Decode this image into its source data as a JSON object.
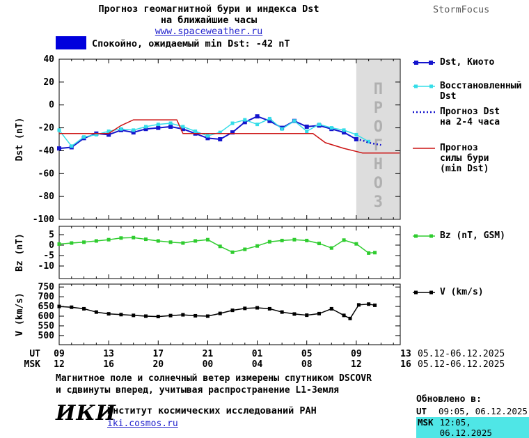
{
  "header": {
    "title_line1": "Прогноз геомагнитной бури и индекса Dst",
    "title_line2": "на ближайшие часы",
    "site_link": "www.spaceweather.ru",
    "brand": "StormFocus"
  },
  "banner": {
    "swatch_color": "#0000dd",
    "text": "Спокойно, ожидаемый min Dst: -42 nT"
  },
  "chart_data": [
    {
      "type": "line",
      "ylabel": "Dst (nT)",
      "ylim": [
        -100,
        40
      ],
      "yticks": [
        40,
        20,
        0,
        -20,
        -40,
        -60,
        -80,
        -100
      ],
      "xlim_hours": [
        0,
        28
      ],
      "forecast_band_start_hour": 24,
      "forecast_band_label": "ПРОГНОЗ",
      "series": [
        {
          "id": "dst-kyoto",
          "name": "Dst, Киото",
          "color": "#1414cd",
          "style": "solid",
          "marker": true,
          "width": 2,
          "msize": 6,
          "x": [
            0,
            1,
            2,
            3,
            4,
            5,
            6,
            7,
            8,
            9,
            10,
            11,
            12,
            13,
            14,
            15,
            16,
            17,
            18,
            19,
            20,
            21,
            22,
            23,
            24
          ],
          "y": [
            -38,
            -37,
            -29,
            -25,
            -26,
            -22,
            -24,
            -21,
            -20,
            -19,
            -21,
            -25,
            -29,
            -30,
            -24,
            -15,
            -10,
            -14,
            -20,
            -14,
            -19,
            -18,
            -21,
            -24,
            -30
          ]
        },
        {
          "id": "dst-restored",
          "name": "Восстановленный\nDst",
          "color": "#35dde8",
          "style": "solid",
          "marker": true,
          "width": 1.5,
          "msize": 5,
          "x": [
            0,
            1,
            2,
            3,
            4,
            5,
            6,
            7,
            8,
            9,
            10,
            11,
            12,
            13,
            14,
            15,
            16,
            17,
            18,
            19,
            20,
            21,
            22,
            23,
            24,
            25
          ],
          "y": [
            -22,
            -36,
            -28,
            -26,
            -23,
            -21,
            -22,
            -19,
            -17,
            -16,
            -19,
            -23,
            -27,
            -24,
            -16,
            -13,
            -17,
            -12,
            -21,
            -14,
            -23,
            -17,
            -20,
            -22,
            -26,
            -32
          ]
        },
        {
          "id": "dst-forecast",
          "name": "Прогноз Dst\nна 2-4 часа",
          "color": "#1414cd",
          "style": "dotted",
          "marker": false,
          "width": 2.5,
          "x": [
            24,
            24.5,
            25,
            25.5,
            26
          ],
          "y": [
            -30,
            -31,
            -33,
            -34,
            -35
          ]
        },
        {
          "id": "storm-forecast",
          "name": "Прогноз\nсилы бури\n(min Dst)",
          "color": "#cc1414",
          "style": "solid",
          "marker": false,
          "width": 1.5,
          "x": [
            0,
            4,
            5,
            6,
            9.5,
            10,
            20.5,
            21.5,
            23,
            24.5,
            27.5
          ],
          "y": [
            -25,
            -25,
            -18,
            -13,
            -13,
            -25,
            -25,
            -33,
            -38,
            -42,
            -42
          ]
        }
      ]
    },
    {
      "type": "line",
      "ylabel": "Bz (nT)",
      "ylim": [
        -16,
        9
      ],
      "yticks": [
        5,
        0,
        -5,
        -10
      ],
      "series": [
        {
          "id": "bz",
          "name": "Bz (nT, GSM)",
          "color": "#2fcc2f",
          "style": "solid",
          "marker": true,
          "width": 1.5,
          "msize": 5,
          "x": [
            0,
            1,
            2,
            3,
            4,
            5,
            6,
            7,
            8,
            9,
            10,
            11,
            12,
            13,
            14,
            15,
            16,
            17,
            18,
            19,
            20,
            21,
            22,
            23,
            24,
            25,
            25.5
          ],
          "y": [
            0.5,
            1.0,
            1.4,
            2.0,
            2.6,
            3.4,
            3.6,
            2.8,
            2.0,
            1.4,
            1.0,
            2.0,
            2.6,
            -0.6,
            -3.4,
            -2.0,
            -0.4,
            1.6,
            2.2,
            2.6,
            2.2,
            0.8,
            -1.4,
            2.4,
            0.6,
            -3.8,
            -3.6
          ]
        }
      ]
    },
    {
      "type": "line",
      "ylabel": "V (km/s)",
      "ylim": [
        453,
        765
      ],
      "yticks": [
        750,
        700,
        650,
        600,
        550,
        500
      ],
      "series": [
        {
          "id": "v",
          "name": "V (km/s)",
          "color": "#000000",
          "style": "solid",
          "marker": true,
          "width": 1.5,
          "msize": 5,
          "x": [
            0,
            1,
            2,
            3,
            4,
            5,
            6,
            7,
            8,
            9,
            10,
            11,
            12,
            13,
            14,
            15,
            16,
            17,
            18,
            19,
            20,
            21,
            22,
            23,
            23.5,
            24.2,
            25,
            25.5
          ],
          "y": [
            650,
            646,
            638,
            621,
            612,
            608,
            604,
            600,
            598,
            603,
            607,
            602,
            600,
            614,
            630,
            640,
            643,
            638,
            621,
            611,
            605,
            613,
            638,
            604,
            588,
            658,
            662,
            656
          ]
        }
      ]
    }
  ],
  "xaxis": {
    "ut_label": "UT",
    "msk_label": "MSK",
    "ticks": [
      {
        "hour": 0,
        "ut": "09",
        "msk": "12"
      },
      {
        "hour": 4,
        "ut": "13",
        "msk": "16"
      },
      {
        "hour": 8,
        "ut": "17",
        "msk": "20"
      },
      {
        "hour": 12,
        "ut": "21",
        "msk": "00"
      },
      {
        "hour": 16,
        "ut": "01",
        "msk": "04"
      },
      {
        "hour": 20,
        "ut": "05",
        "msk": "08"
      },
      {
        "hour": 24,
        "ut": "09",
        "msk": "12"
      },
      {
        "hour": 28,
        "ut": "13",
        "msk": "16"
      }
    ],
    "date_range_ut": "05.12-06.12.2025",
    "date_range_msk": "05.12-06.12.2025"
  },
  "footer": {
    "note_line1": "Магнитное поле и солнечный ветер измерены спутником DSCOVR",
    "note_line2": "и сдвинуты вперед, учитывая распространение L1-Земля",
    "updated_label": "Обновлено в:",
    "updated_ut_label": "UT",
    "updated_ut_value": "09:05, 06.12.2025",
    "updated_msk_label": "MSK",
    "updated_msk_value": "12:05, 06.12.2025",
    "org_logo": "ИКИ",
    "org_name": "Институт космических исследований РАН",
    "org_link": "iki.cosmos.ru"
  }
}
